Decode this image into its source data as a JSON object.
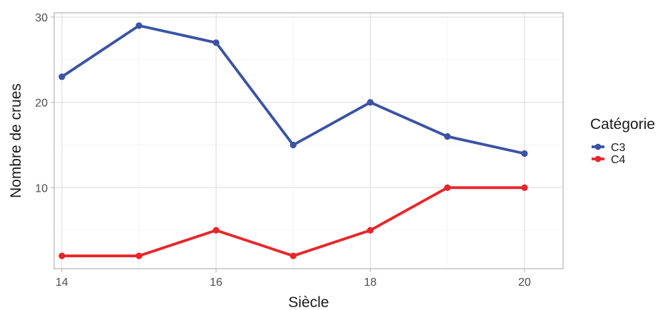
{
  "chart_data": {
    "type": "line",
    "title": "",
    "xlabel": "Siècle",
    "ylabel": "Nombre de crues",
    "x": [
      14,
      15,
      16,
      17,
      18,
      19,
      20
    ],
    "xlim": [
      13.9,
      20.5
    ],
    "ylim": [
      0.5,
      30.5
    ],
    "x_major_ticks": [
      14,
      16,
      18,
      20
    ],
    "x_tick_labels": [
      "14",
      "16",
      "18",
      "20"
    ],
    "x_minor_ticks": [
      15,
      17,
      19
    ],
    "y_major_ticks": [
      10,
      20,
      30
    ],
    "y_tick_labels": [
      "10",
      "20",
      "30"
    ],
    "y_minor_ticks": [
      5,
      15,
      25
    ],
    "grid": true,
    "legend": {
      "title": "Catégorie",
      "placement": "right"
    },
    "series": [
      {
        "name": "C3",
        "color": "#3a53a4",
        "values": [
          23,
          29,
          27,
          15,
          20,
          16,
          14
        ]
      },
      {
        "name": "C4",
        "color": "#e8262a",
        "values": [
          2,
          2,
          5,
          2,
          5,
          10,
          10
        ]
      }
    ]
  }
}
